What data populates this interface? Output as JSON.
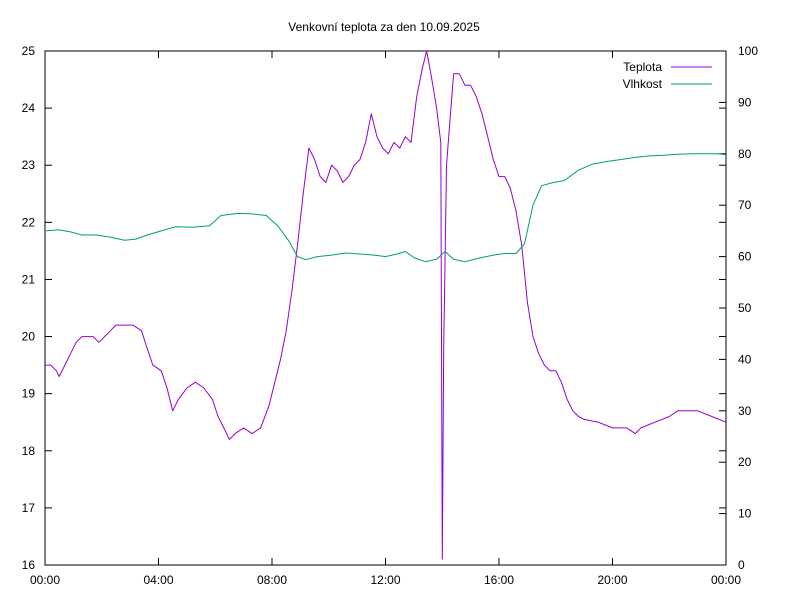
{
  "chart_data": {
    "type": "line",
    "title": "Venkovní teplota za den 10.09.2025",
    "xlabel": "",
    "ylabel": "",
    "y2label": "",
    "x_ticks": [
      "00:00",
      "04:00",
      "08:00",
      "12:00",
      "16:00",
      "20:00",
      "00:00"
    ],
    "xlim": [
      0,
      24
    ],
    "ylim": [
      16,
      25
    ],
    "y_ticks": [
      16,
      17,
      18,
      19,
      20,
      21,
      22,
      23,
      24,
      25
    ],
    "y2lim": [
      0,
      100
    ],
    "y2_ticks": [
      0,
      10,
      20,
      30,
      40,
      50,
      60,
      70,
      80,
      90,
      100
    ],
    "grid": false,
    "legend_position": "top-right",
    "series": [
      {
        "name": "Teplota",
        "axis": "left",
        "color": "#9400d3",
        "points": [
          [
            0.0,
            19.5
          ],
          [
            0.2,
            19.5
          ],
          [
            0.4,
            19.4
          ],
          [
            0.5,
            19.3
          ],
          [
            0.7,
            19.5
          ],
          [
            0.9,
            19.7
          ],
          [
            1.1,
            19.9
          ],
          [
            1.3,
            20.0
          ],
          [
            1.5,
            20.0
          ],
          [
            1.7,
            20.0
          ],
          [
            1.9,
            19.9
          ],
          [
            2.1,
            20.0
          ],
          [
            2.3,
            20.1
          ],
          [
            2.5,
            20.2
          ],
          [
            2.8,
            20.2
          ],
          [
            3.1,
            20.2
          ],
          [
            3.4,
            20.1
          ],
          [
            3.6,
            19.8
          ],
          [
            3.8,
            19.5
          ],
          [
            4.1,
            19.4
          ],
          [
            4.3,
            19.1
          ],
          [
            4.5,
            18.7
          ],
          [
            4.7,
            18.9
          ],
          [
            5.0,
            19.1
          ],
          [
            5.3,
            19.2
          ],
          [
            5.6,
            19.1
          ],
          [
            5.9,
            18.9
          ],
          [
            6.1,
            18.6
          ],
          [
            6.3,
            18.4
          ],
          [
            6.5,
            18.2
          ],
          [
            6.7,
            18.3
          ],
          [
            7.0,
            18.4
          ],
          [
            7.3,
            18.3
          ],
          [
            7.6,
            18.4
          ],
          [
            7.9,
            18.8
          ],
          [
            8.1,
            19.2
          ],
          [
            8.3,
            19.6
          ],
          [
            8.5,
            20.1
          ],
          [
            8.7,
            20.8
          ],
          [
            8.9,
            21.6
          ],
          [
            9.1,
            22.5
          ],
          [
            9.3,
            23.3
          ],
          [
            9.5,
            23.1
          ],
          [
            9.7,
            22.8
          ],
          [
            9.9,
            22.7
          ],
          [
            10.1,
            23.0
          ],
          [
            10.3,
            22.9
          ],
          [
            10.5,
            22.7
          ],
          [
            10.7,
            22.8
          ],
          [
            10.9,
            23.0
          ],
          [
            11.1,
            23.1
          ],
          [
            11.3,
            23.4
          ],
          [
            11.5,
            23.9
          ],
          [
            11.7,
            23.5
          ],
          [
            11.9,
            23.3
          ],
          [
            12.1,
            23.2
          ],
          [
            12.3,
            23.4
          ],
          [
            12.5,
            23.3
          ],
          [
            12.7,
            23.5
          ],
          [
            12.9,
            23.4
          ],
          [
            13.1,
            24.2
          ],
          [
            13.3,
            24.7
          ],
          [
            13.45,
            25.0
          ],
          [
            13.6,
            24.6
          ],
          [
            13.8,
            24.0
          ],
          [
            13.95,
            23.4
          ],
          [
            14.0,
            16.1
          ],
          [
            14.05,
            19.8
          ],
          [
            14.15,
            23.0
          ],
          [
            14.4,
            24.6
          ],
          [
            14.6,
            24.6
          ],
          [
            14.8,
            24.4
          ],
          [
            15.0,
            24.4
          ],
          [
            15.2,
            24.2
          ],
          [
            15.4,
            23.9
          ],
          [
            15.6,
            23.5
          ],
          [
            15.8,
            23.1
          ],
          [
            16.0,
            22.8
          ],
          [
            16.2,
            22.8
          ],
          [
            16.4,
            22.6
          ],
          [
            16.6,
            22.2
          ],
          [
            16.8,
            21.6
          ],
          [
            17.0,
            20.6
          ],
          [
            17.2,
            20.0
          ],
          [
            17.4,
            19.7
          ],
          [
            17.6,
            19.5
          ],
          [
            17.8,
            19.4
          ],
          [
            18.0,
            19.4
          ],
          [
            18.2,
            19.2
          ],
          [
            18.4,
            18.9
          ],
          [
            18.6,
            18.7
          ],
          [
            18.8,
            18.6
          ],
          [
            19.0,
            18.55
          ],
          [
            19.5,
            18.5
          ],
          [
            20.0,
            18.4
          ],
          [
            20.5,
            18.4
          ],
          [
            20.8,
            18.3
          ],
          [
            21.0,
            18.4
          ],
          [
            21.5,
            18.5
          ],
          [
            22.0,
            18.6
          ],
          [
            22.3,
            18.7
          ],
          [
            22.6,
            18.7
          ],
          [
            23.0,
            18.7
          ],
          [
            23.5,
            18.6
          ],
          [
            24.0,
            18.5
          ]
        ]
      },
      {
        "name": "Vlhkost",
        "axis": "right",
        "color": "#009e73",
        "points": [
          [
            0.0,
            65.0
          ],
          [
            0.5,
            65.2
          ],
          [
            0.9,
            64.8
          ],
          [
            1.3,
            64.2
          ],
          [
            1.8,
            64.2
          ],
          [
            2.3,
            63.8
          ],
          [
            2.8,
            63.2
          ],
          [
            3.2,
            63.4
          ],
          [
            3.6,
            64.2
          ],
          [
            4.1,
            65.0
          ],
          [
            4.6,
            65.8
          ],
          [
            5.2,
            65.7
          ],
          [
            5.8,
            66.0
          ],
          [
            6.2,
            68.0
          ],
          [
            6.8,
            68.4
          ],
          [
            7.3,
            68.3
          ],
          [
            7.8,
            68.0
          ],
          [
            8.2,
            66.0
          ],
          [
            8.6,
            63.0
          ],
          [
            8.9,
            60.0
          ],
          [
            9.2,
            59.4
          ],
          [
            9.6,
            60.0
          ],
          [
            10.1,
            60.3
          ],
          [
            10.6,
            60.7
          ],
          [
            11.1,
            60.5
          ],
          [
            11.6,
            60.3
          ],
          [
            12.0,
            60.0
          ],
          [
            12.4,
            60.5
          ],
          [
            12.7,
            61.0
          ],
          [
            13.0,
            59.8
          ],
          [
            13.4,
            59.0
          ],
          [
            13.8,
            59.5
          ],
          [
            14.1,
            61.0
          ],
          [
            14.4,
            59.5
          ],
          [
            14.8,
            59.0
          ],
          [
            15.3,
            59.7
          ],
          [
            15.8,
            60.3
          ],
          [
            16.2,
            60.6
          ],
          [
            16.6,
            60.6
          ],
          [
            16.9,
            62.5
          ],
          [
            17.2,
            70.0
          ],
          [
            17.5,
            73.8
          ],
          [
            17.9,
            74.4
          ],
          [
            18.3,
            74.8
          ],
          [
            18.8,
            76.8
          ],
          [
            19.3,
            78.0
          ],
          [
            19.8,
            78.5
          ],
          [
            20.3,
            78.9
          ],
          [
            20.8,
            79.3
          ],
          [
            21.3,
            79.6
          ],
          [
            21.8,
            79.7
          ],
          [
            22.3,
            79.9
          ],
          [
            22.8,
            80.0
          ],
          [
            23.3,
            80.0
          ],
          [
            23.7,
            80.0
          ],
          [
            24.0,
            79.8
          ]
        ]
      }
    ]
  }
}
